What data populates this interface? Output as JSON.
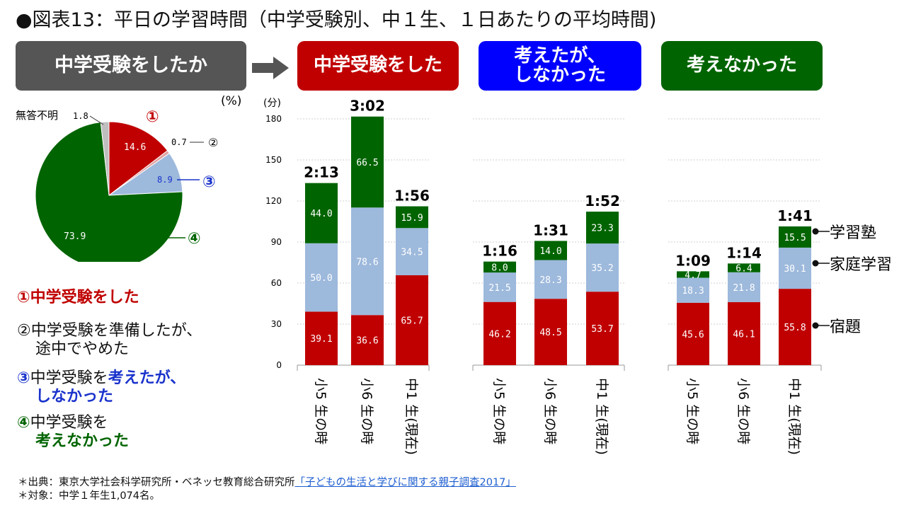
{
  "title": "●図表13：平日の学習時間（中学受験別、中１生、１日あたりの平均時間)",
  "header_main": "中学受験をしたか",
  "groups": [
    {
      "label": "中学受験をした",
      "color": "#c00000"
    },
    {
      "label_line1": "考えたが、",
      "label_line2": "しなかった",
      "color": "#0000ff"
    },
    {
      "label": "考えなかった",
      "color": "#006400"
    }
  ],
  "pie": {
    "unit": "(%)",
    "slices": [
      {
        "name": "①",
        "label": "14.6",
        "value": 14.6,
        "color": "#c00000"
      },
      {
        "name": "②",
        "label": "0.7",
        "value": 0.7,
        "color": "#e0a0a0"
      },
      {
        "name": "③",
        "label": "8.9",
        "value": 8.9,
        "color": "#9db9dc"
      },
      {
        "name": "④",
        "label": "73.9",
        "value": 73.9,
        "color": "#006400"
      },
      {
        "name": "無答不明",
        "label": "1.8",
        "value": 1.8,
        "color": "#bfbfbf"
      }
    ],
    "markers": {
      "m1": "①",
      "m2": "②",
      "m3": "③",
      "m4": "④"
    },
    "noanswer": "無答不明"
  },
  "legend": {
    "i1_num": "①",
    "i1_text": "中学受験をした",
    "i2_num": "②",
    "i2_line1": "中学受験を準備したが、",
    "i2_line2": "途中でやめた",
    "i3_num": "③",
    "i3_pre": "中学受験を",
    "i3_bold": "考えたが、",
    "i3_line2": "しなかった",
    "i4_num": "④",
    "i4_line1": "中学受験を",
    "i4_line2": "考えなかった"
  },
  "chart_data": {
    "type": "bar",
    "stacked": true,
    "y_unit": "(分)",
    "ylim": [
      0,
      180
    ],
    "yticks": [
      0,
      30,
      60,
      90,
      120,
      150,
      180
    ],
    "series": [
      {
        "name": "宿題",
        "color": "#c00000",
        "values": [
          39.1,
          36.6,
          65.7,
          46.2,
          48.5,
          53.7,
          45.6,
          46.1,
          55.8
        ]
      },
      {
        "name": "家庭学習",
        "color": "#9db9dc",
        "values": [
          50.0,
          78.6,
          34.5,
          21.5,
          28.3,
          35.2,
          18.3,
          21.8,
          30.1
        ]
      },
      {
        "name": "学習塾",
        "color": "#006400",
        "values": [
          44.0,
          66.5,
          15.9,
          8.0,
          14.0,
          23.3,
          4.7,
          6.4,
          15.5
        ]
      }
    ],
    "value_labels": [
      [
        "39.1",
        "36.6",
        "65.7",
        "46.2",
        "48.5",
        "53.7",
        "45.6",
        "46.1",
        "55.8"
      ],
      [
        "50.0",
        "78.6",
        "34.5",
        "21.5",
        "28.3",
        "35.2",
        "18.3",
        "21.8",
        "30.1"
      ],
      [
        "44.0",
        "66.5",
        "15.9",
        "8.0",
        "14.0",
        "23.3",
        "4.7",
        "6.4",
        "15.5"
      ]
    ],
    "totals": [
      "2:13",
      "3:02",
      "1:56",
      "1:16",
      "1:31",
      "1:52",
      "1:09",
      "1:14",
      "1:41"
    ],
    "categories": [
      "小5 生の時",
      "小6 生の時",
      "中1 生(現在)",
      "小5 生の時",
      "小6 生の時",
      "中1 生(現在)",
      "小5 生の時",
      "小6 生の時",
      "中1 生(現在)"
    ],
    "series_labels": [
      "学習塾",
      "家庭学習",
      "宿題"
    ]
  },
  "footer": {
    "line1_prefix": "＊出典：東京大学社会科学研究所・ベネッセ教育総合研究所",
    "line1_link": "「子どもの生活と学びに関する親子調査2017」",
    "line2": "＊対象：中学１年生1,074名。"
  }
}
